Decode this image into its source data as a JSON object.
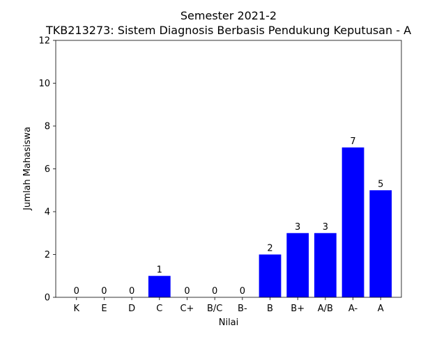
{
  "chart_data": {
    "type": "bar",
    "title": "Semester 2021-2",
    "subtitle": "TKB213273: Sistem Diagnosis Berbasis Pendukung Keputusan - A",
    "xlabel": "Nilai",
    "ylabel": "Jumlah Mahasiswa",
    "categories": [
      "K",
      "E",
      "D",
      "C",
      "C+",
      "B/C",
      "B-",
      "B",
      "B+",
      "A/B",
      "A-",
      "A"
    ],
    "values": [
      0,
      0,
      0,
      1,
      0,
      0,
      0,
      2,
      3,
      3,
      7,
      5
    ],
    "data_labels": [
      "0",
      "0",
      "0",
      "1",
      "0",
      "0",
      "0",
      "2",
      "3",
      "3",
      "7",
      "5"
    ],
    "ylim": [
      0,
      12
    ],
    "yticks": [
      0,
      2,
      4,
      6,
      8,
      10,
      12
    ],
    "ytick_labels": [
      "0",
      "2",
      "4",
      "6",
      "8",
      "10",
      "12"
    ],
    "grid": false,
    "legend": "none",
    "bar_color": "#0000ff"
  }
}
